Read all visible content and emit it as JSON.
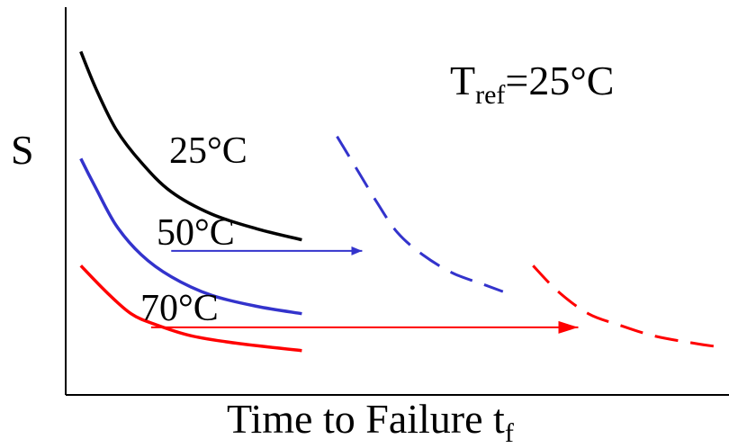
{
  "chart_data": {
    "type": "line",
    "title": "",
    "xlabel": {
      "main": "Time to Failure  t",
      "sub": "f"
    },
    "ylabel": "S",
    "annotation": {
      "main": "T",
      "sub": "ref",
      "rest": "=25°C"
    },
    "series": [
      {
        "name": "25°C",
        "color": "#000000",
        "dash": "solid",
        "label": "25°C",
        "points": [
          [
            0.3,
            0.93
          ],
          [
            0.6,
            0.83
          ],
          [
            1.0,
            0.72
          ],
          [
            1.5,
            0.63
          ],
          [
            2.1,
            0.55
          ],
          [
            2.9,
            0.49
          ],
          [
            3.8,
            0.45
          ],
          [
            4.7,
            0.42
          ]
        ]
      },
      {
        "name": "50°C",
        "color": "#3333cc",
        "dash": "solid",
        "label": "50°C",
        "points": [
          [
            0.3,
            0.64
          ],
          [
            0.6,
            0.56
          ],
          [
            1.0,
            0.46
          ],
          [
            1.5,
            0.38
          ],
          [
            2.1,
            0.32
          ],
          [
            2.9,
            0.27
          ],
          [
            3.8,
            0.24
          ],
          [
            4.7,
            0.22
          ]
        ]
      },
      {
        "name": "70°C",
        "color": "#ff0000",
        "dash": "solid",
        "label": "70°C",
        "points": [
          [
            0.3,
            0.35
          ],
          [
            0.8,
            0.28
          ],
          [
            1.3,
            0.22
          ],
          [
            1.8,
            0.19
          ],
          [
            2.5,
            0.16
          ],
          [
            3.4,
            0.14
          ],
          [
            4.7,
            0.12
          ]
        ]
      },
      {
        "name": "50°C shifted",
        "color": "#3333cc",
        "dash": "dashed",
        "label": "",
        "points": [
          [
            5.4,
            0.7
          ],
          [
            5.8,
            0.61
          ],
          [
            6.2,
            0.52
          ],
          [
            6.6,
            0.44
          ],
          [
            7.1,
            0.38
          ],
          [
            7.7,
            0.33
          ],
          [
            8.3,
            0.3
          ],
          [
            8.7,
            0.28
          ]
        ]
      },
      {
        "name": "70°C shifted",
        "color": "#ff0000",
        "dash": "dashed",
        "label": "",
        "points": [
          [
            9.3,
            0.35
          ],
          [
            9.8,
            0.28
          ],
          [
            10.4,
            0.22
          ],
          [
            11.0,
            0.19
          ],
          [
            11.7,
            0.16
          ],
          [
            12.5,
            0.14
          ],
          [
            13.0,
            0.13
          ]
        ]
      }
    ],
    "shift_arrows": [
      {
        "color": "#3333cc",
        "from": [
          2.1,
          0.39
        ],
        "to": [
          5.9,
          0.39
        ]
      },
      {
        "color": "#ff0000",
        "from": [
          1.7,
          0.183
        ],
        "to": [
          10.2,
          0.183
        ]
      }
    ],
    "xlim": [
      0,
      13.2
    ],
    "ylim": [
      0,
      1.05
    ],
    "grid": false,
    "axes_ticks": false
  }
}
